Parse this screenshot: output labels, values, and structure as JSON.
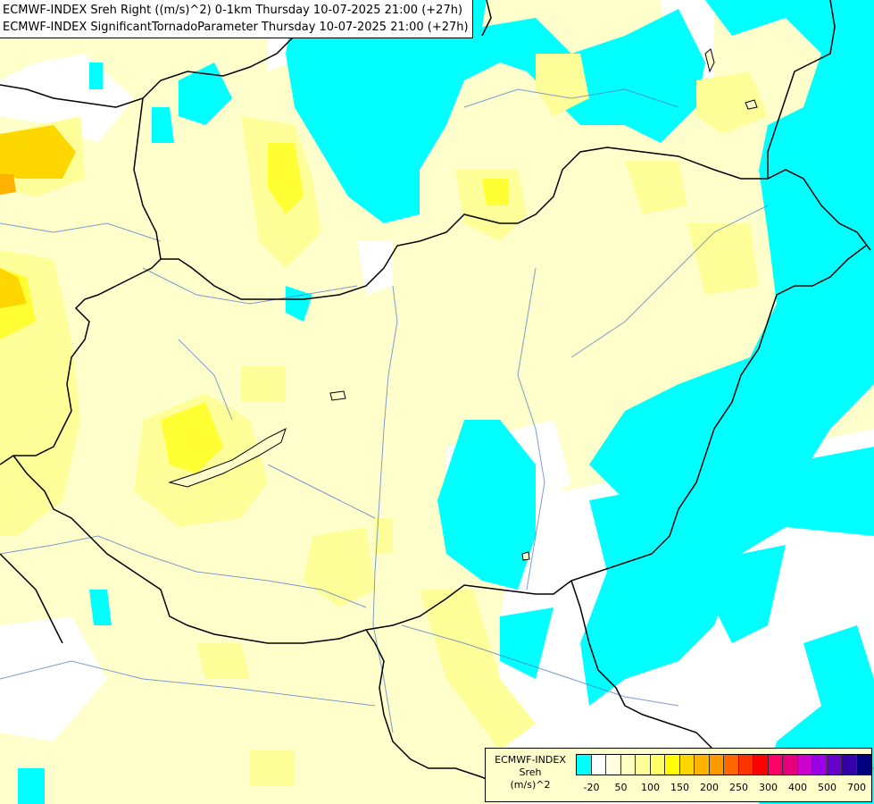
{
  "header": {
    "title_line1": "ECMWF-INDEX Sreh Right ((m/s)^2) 0-1km Thursday 10-07-2025 21:00 (+27h)",
    "title_line2": "ECMWF-INDEX SignificantTornadoParameter Thursday 10-07-2025 21:00 (+27h)"
  },
  "legend": {
    "source": "ECMWF-INDEX",
    "param": "Sreh",
    "unit": "(m/s)^2",
    "colors": [
      "#00ffff",
      "#ffffff",
      "#ffffe0",
      "#ffffc0",
      "#ffff99",
      "#ffff66",
      "#ffff00",
      "#ffd700",
      "#ffb300",
      "#ff9900",
      "#ff6600",
      "#ff3300",
      "#ff0000",
      "#ff0066",
      "#e6007e",
      "#cc00cc",
      "#9900e6",
      "#6600cc",
      "#3300aa",
      "#000080"
    ],
    "ticks": [
      {
        "label": "-20",
        "pos": 0.5
      },
      {
        "label": "50",
        "pos": 1.5
      },
      {
        "label": "100",
        "pos": 2.5
      },
      {
        "label": "150",
        "pos": 3.5
      },
      {
        "label": "200",
        "pos": 4.5
      },
      {
        "label": "250",
        "pos": 5.5
      },
      {
        "label": "300",
        "pos": 6.5
      },
      {
        "label": "400",
        "pos": 7.5
      },
      {
        "label": "500",
        "pos": 8.5
      },
      {
        "label": "700",
        "pos": 9.5
      }
    ]
  },
  "map": {
    "background_color": "#ffffc0",
    "cyan_color": "#00ffff",
    "yellow_color": "#ffff66",
    "orange_color": "#ffd700"
  }
}
